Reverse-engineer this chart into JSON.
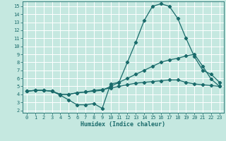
{
  "xlabel": "Humidex (Indice chaleur)",
  "bg_color": "#c5e8e0",
  "grid_color": "#ffffff",
  "line_color": "#1a6b6b",
  "xlim_min": -0.5,
  "xlim_max": 23.5,
  "ylim_min": 1.7,
  "ylim_max": 15.6,
  "xticks": [
    0,
    1,
    2,
    3,
    4,
    5,
    6,
    7,
    8,
    9,
    10,
    11,
    12,
    13,
    14,
    15,
    16,
    17,
    18,
    19,
    20,
    21,
    22,
    23
  ],
  "yticks": [
    2,
    3,
    4,
    5,
    6,
    7,
    8,
    9,
    10,
    11,
    12,
    13,
    14,
    15
  ],
  "line1_x": [
    0,
    1,
    2,
    3,
    4,
    5,
    6,
    7,
    8,
    9,
    10,
    11,
    12,
    13,
    14,
    15,
    16,
    17,
    18,
    19,
    20,
    21,
    22,
    23
  ],
  "line1_y": [
    4.4,
    4.5,
    4.5,
    4.4,
    3.9,
    3.3,
    2.7,
    2.7,
    2.85,
    2.25,
    5.3,
    5.5,
    8.0,
    10.5,
    13.2,
    15.0,
    15.3,
    15.0,
    13.5,
    11.0,
    8.7,
    7.0,
    6.5,
    5.5
  ],
  "line2_x": [
    0,
    1,
    2,
    3,
    4,
    5,
    6,
    7,
    8,
    9,
    10,
    11,
    12,
    13,
    14,
    15,
    16,
    17,
    18,
    19,
    20,
    21,
    22,
    23
  ],
  "line2_y": [
    4.4,
    4.5,
    4.5,
    4.4,
    4.0,
    4.0,
    4.2,
    4.3,
    4.4,
    4.5,
    5.0,
    5.5,
    6.0,
    6.5,
    7.0,
    7.5,
    8.0,
    8.3,
    8.5,
    8.8,
    9.0,
    7.5,
    5.9,
    5.0
  ],
  "line3_x": [
    0,
    1,
    2,
    3,
    4,
    5,
    6,
    7,
    8,
    9,
    10,
    11,
    12,
    13,
    14,
    15,
    16,
    17,
    18,
    19,
    20,
    21,
    22,
    23
  ],
  "line3_y": [
    4.4,
    4.5,
    4.5,
    4.4,
    4.0,
    4.0,
    4.2,
    4.3,
    4.5,
    4.6,
    4.8,
    5.0,
    5.2,
    5.4,
    5.5,
    5.6,
    5.7,
    5.8,
    5.8,
    5.5,
    5.3,
    5.2,
    5.1,
    5.0
  ],
  "tick_fontsize": 5.0,
  "xlabel_fontsize": 6.0
}
